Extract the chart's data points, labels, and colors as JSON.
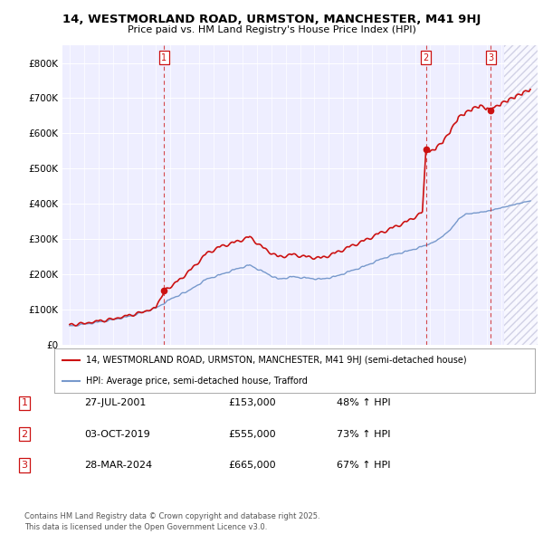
{
  "title_line1": "14, WESTMORLAND ROAD, URMSTON, MANCHESTER, M41 9HJ",
  "title_line2": "Price paid vs. HM Land Registry's House Price Index (HPI)",
  "background_color": "#ffffff",
  "plot_bg_color": "#eeeeff",
  "grid_color": "#ffffff",
  "hatch_color": "#ccccdd",
  "sale_dates_float": [
    2001.57,
    2019.75,
    2024.24
  ],
  "sale_prices": [
    153000,
    555000,
    665000
  ],
  "sale_labels": [
    "1",
    "2",
    "3"
  ],
  "hpi_color": "#7799cc",
  "price_color": "#cc1111",
  "legend_entries": [
    "14, WESTMORLAND ROAD, URMSTON, MANCHESTER, M41 9HJ (semi-detached house)",
    "HPI: Average price, semi-detached house, Trafford"
  ],
  "table_data": [
    [
      "1",
      "27-JUL-2001",
      "£153,000",
      "48% ↑ HPI"
    ],
    [
      "2",
      "03-OCT-2019",
      "£555,000",
      "73% ↑ HPI"
    ],
    [
      "3",
      "28-MAR-2024",
      "£665,000",
      "67% ↑ HPI"
    ]
  ],
  "footer": "Contains HM Land Registry data © Crown copyright and database right 2025.\nThis data is licensed under the Open Government Licence v3.0.",
  "ylim": [
    0,
    850000
  ],
  "yticks": [
    0,
    100000,
    200000,
    300000,
    400000,
    500000,
    600000,
    700000,
    800000
  ],
  "ytick_labels": [
    "£0",
    "£100K",
    "£200K",
    "£300K",
    "£400K",
    "£500K",
    "£600K",
    "£700K",
    "£800K"
  ],
  "xmin": 1994.5,
  "xmax": 2027.5,
  "hatch_start": 2025.17,
  "x_ticks_start": 1995,
  "x_ticks_end": 2027
}
